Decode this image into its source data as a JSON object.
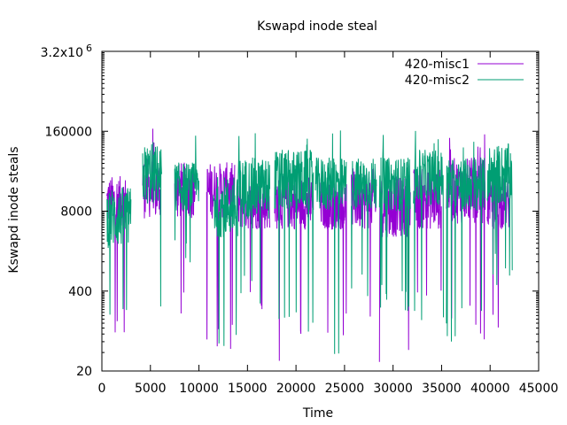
{
  "chart_data": {
    "type": "line",
    "title": "Kswapd inode steal",
    "xlabel": "Time",
    "ylabel": "Kswapd inode steals",
    "xlim": [
      0,
      45000
    ],
    "ylim": [
      20,
      3200000
    ],
    "log_y": true,
    "grid": false,
    "legend": "top-right",
    "x_ticks": [
      "0",
      "5000",
      "10000",
      "15000",
      "20000",
      "25000",
      "30000",
      "35000",
      "40000",
      "45000"
    ],
    "x_tick_values": [
      0,
      5000,
      10000,
      15000,
      20000,
      25000,
      30000,
      35000,
      40000,
      45000
    ],
    "y_ticks": [
      "20",
      "400",
      "8000",
      "160000"
    ],
    "y_tick_values": [
      20,
      400,
      8000,
      160000
    ],
    "y_top_tick": {
      "mantissa": "3.2x10",
      "exponent": "6",
      "value": 3200000
    },
    "series": [
      {
        "name": "420-misc1",
        "color": "#9400d3",
        "segments": [
          {
            "x_range": [
              500,
              2600
            ],
            "band": [
              4000,
              30000
            ],
            "dips_to": 60
          },
          {
            "x_range": [
              4200,
              6000
            ],
            "band": [
              6000,
              60000
            ],
            "peaks_to": 180000,
            "dips_to": 3000
          },
          {
            "x_range": [
              7500,
              9600
            ],
            "band": [
              6000,
              50000
            ],
            "dips_to": 150
          },
          {
            "x_range": [
              10800,
              13700
            ],
            "band": [
              6000,
              50000
            ],
            "dips_to": 30
          },
          {
            "x_range": [
              14000,
              17300
            ],
            "band": [
              4000,
              25000
            ],
            "dips_to": 200
          },
          {
            "x_range": [
              17800,
              21800
            ],
            "band": [
              4000,
              30000
            ],
            "dips_to": 25
          },
          {
            "x_range": [
              22500,
              25200
            ],
            "band": [
              4000,
              25000
            ],
            "dips_to": 60
          },
          {
            "x_range": [
              25700,
              28300
            ],
            "band": [
              4000,
              40000
            ],
            "dips_to": 100
          },
          {
            "x_range": [
              28600,
              31800
            ],
            "band": [
              3000,
              30000
            ],
            "dips_to": 22
          },
          {
            "x_range": [
              32100,
              35000
            ],
            "band": [
              4000,
              40000
            ],
            "dips_to": 150
          },
          {
            "x_range": [
              35500,
              39500
            ],
            "band": [
              5000,
              60000
            ],
            "peaks_to": 150000,
            "dips_to": 60
          },
          {
            "x_range": [
              39700,
              42000
            ],
            "band": [
              4000,
              30000
            ],
            "dips_to": 60
          }
        ]
      },
      {
        "name": "420-misc2",
        "color": "#009e73",
        "segments": [
          {
            "x_range": [
              500,
              3000
            ],
            "band": [
              2000,
              20000
            ],
            "dips_to": 60
          },
          {
            "x_range": [
              4200,
              6200
            ],
            "band": [
              10000,
              100000
            ],
            "peaks_to": 180000,
            "dips_to": 60
          },
          {
            "x_range": [
              7500,
              10000
            ],
            "band": [
              8000,
              50000
            ],
            "peaks_to": 150000,
            "dips_to": 1000
          },
          {
            "x_range": [
              11500,
              14000
            ],
            "band": [
              3000,
              30000
            ],
            "dips_to": 25
          },
          {
            "x_range": [
              14000,
              17300
            ],
            "band": [
              6000,
              60000
            ],
            "peaks_to": 170000,
            "dips_to": 200
          },
          {
            "x_range": [
              17800,
              21800
            ],
            "band": [
              8000,
              80000
            ],
            "peaks_to": 170000,
            "dips_to": 60
          },
          {
            "x_range": [
              22000,
              25200
            ],
            "band": [
              8000,
              60000
            ],
            "peaks_to": 170000,
            "dips_to": 25
          },
          {
            "x_range": [
              25700,
              28300
            ],
            "band": [
              8000,
              60000
            ],
            "peaks_to": 160000,
            "dips_to": 200
          },
          {
            "x_range": [
              28600,
              31800
            ],
            "band": [
              8000,
              60000
            ],
            "peaks_to": 160000,
            "dips_to": 150
          },
          {
            "x_range": [
              32100,
              35200
            ],
            "band": [
              10000,
              80000
            ],
            "peaks_to": 170000,
            "dips_to": 100
          },
          {
            "x_range": [
              35500,
              39500
            ],
            "band": [
              8000,
              60000
            ],
            "peaks_to": 160000,
            "dips_to": 60
          },
          {
            "x_range": [
              39700,
              42300
            ],
            "band": [
              10000,
              100000
            ],
            "peaks_to": 200000,
            "dips_to": 500
          }
        ]
      }
    ]
  }
}
